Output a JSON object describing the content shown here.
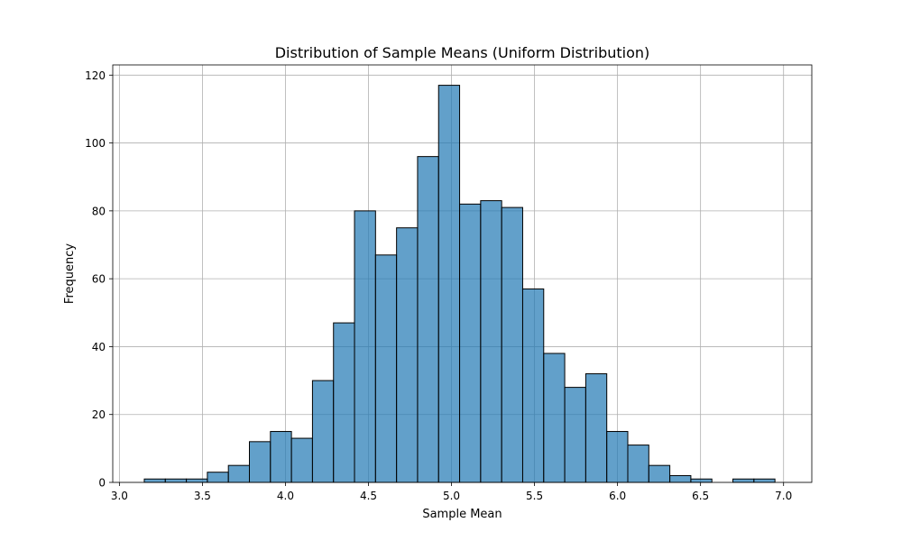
{
  "chart_data": {
    "type": "bar",
    "title": "Distribution of Sample Means (Uniform Distribution)",
    "xlabel": "Sample Mean",
    "ylabel": "Frequency",
    "xlim": [
      2.96,
      7.17
    ],
    "ylim": [
      0,
      123
    ],
    "xticks": [
      3.0,
      3.5,
      4.0,
      4.5,
      5.0,
      5.5,
      6.0,
      6.5,
      7.0
    ],
    "xtick_labels": [
      "3.0",
      "3.5",
      "4.0",
      "4.5",
      "5.0",
      "5.5",
      "6.0",
      "6.5",
      "7.0"
    ],
    "yticks": [
      0,
      20,
      40,
      60,
      80,
      100,
      120
    ],
    "ytick_labels": [
      "0",
      "20",
      "40",
      "60",
      "80",
      "100",
      "120"
    ],
    "grid": true,
    "bar_color": "#1f77b4",
    "bar_alpha": 0.7,
    "edge_color": "#000000",
    "bin_start": 3.15,
    "bin_width": 0.1266,
    "values": [
      1,
      1,
      1,
      3,
      5,
      12,
      15,
      13,
      30,
      47,
      80,
      67,
      75,
      96,
      117,
      82,
      83,
      81,
      57,
      38,
      28,
      32,
      15,
      11,
      5,
      2,
      1,
      0,
      1,
      1
    ]
  }
}
